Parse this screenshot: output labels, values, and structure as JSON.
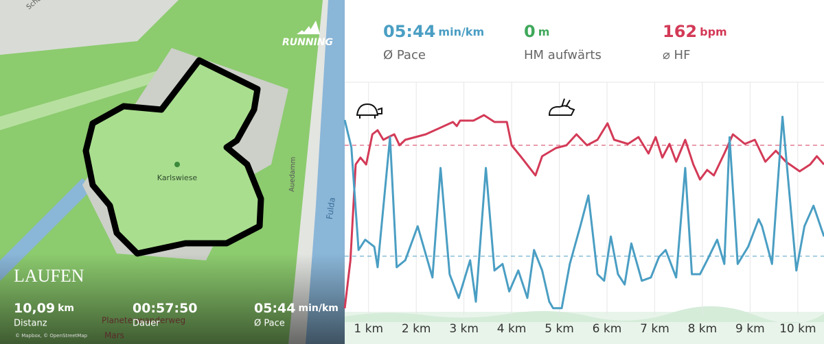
{
  "map": {
    "brand": "RUNNING",
    "activity": "LAUFEN",
    "street_labels": [
      "Schön",
      "Auedamm",
      "Fulda"
    ],
    "park_label": "Karlswiese",
    "poi_labels": [
      "Planetenwanderweg",
      "Mars"
    ],
    "attribution": "© Mapbox, © OpenStreetMap",
    "stats": [
      {
        "value": "10,09",
        "unit": "km",
        "label": "Distanz"
      },
      {
        "value": "00:57:50",
        "unit": "",
        "label": "Dauer"
      },
      {
        "value": "05:44",
        "unit": "min/km",
        "label": "Ø Pace"
      }
    ]
  },
  "summary": [
    {
      "value": "05:44",
      "unit": "min/km",
      "label": "Ø Pace",
      "color": "#4a9ec3"
    },
    {
      "value": "0",
      "unit": "m",
      "label": "HM aufwärts",
      "color": "#3fa85b"
    },
    {
      "value": "162",
      "unit": "bpm",
      "label": "⌀ HF",
      "color": "#d33a57"
    }
  ],
  "chart_data": {
    "type": "line",
    "xlim": [
      0.5,
      10.55
    ],
    "xticks": [
      {
        "value": 1,
        "label": "1 km"
      },
      {
        "value": 2,
        "label": "2 km"
      },
      {
        "value": 3,
        "label": "3 km"
      },
      {
        "value": 4,
        "label": "4 km"
      },
      {
        "value": 5,
        "label": "5 km"
      },
      {
        "value": 6,
        "label": "6 km"
      },
      {
        "value": 7,
        "label": "7 km"
      },
      {
        "value": 8,
        "label": "8 km"
      },
      {
        "value": 9,
        "label": "9 km"
      },
      {
        "value": 10,
        "label": "10 km"
      }
    ],
    "ylim": [
      100,
      185
    ],
    "y2lim": [
      2,
      7
    ],
    "y2_inverted": true,
    "grid": true,
    "series": [
      {
        "color": "#d33a57",
        "x": [
          0.5,
          0.62,
          0.73,
          0.83,
          0.95,
          1.08,
          1.19,
          1.31,
          1.42,
          1.54,
          1.65,
          1.77,
          2.2,
          2.77,
          2.85,
          2.92,
          3.2,
          3.42,
          3.64,
          3.9,
          4.0,
          4.21,
          4.5,
          4.64,
          4.93,
          5.15,
          5.36,
          5.58,
          5.8,
          6.01,
          6.15,
          6.44,
          6.66,
          6.87,
          7.02,
          7.16,
          7.31,
          7.45,
          7.64,
          7.81,
          7.95,
          8.1,
          8.24,
          8.46,
          8.64,
          8.89,
          9.1,
          9.32,
          9.54,
          9.75,
          10.04,
          10.26,
          10.4,
          10.55
        ],
        "values": [
          102.5,
          120,
          155,
          157.5,
          155,
          166,
          167.5,
          164,
          165,
          166,
          162,
          164,
          166,
          170.5,
          169,
          171,
          171,
          173,
          170.5,
          170.5,
          162,
          157.5,
          151,
          158,
          161,
          162,
          166,
          162,
          164,
          170,
          164,
          162.5,
          165,
          159,
          165,
          157.5,
          162.5,
          156,
          164,
          155,
          149.5,
          153,
          151,
          159,
          166,
          162.5,
          164,
          156,
          160,
          156,
          152.5,
          155,
          158,
          155
        ]
      },
      {
        "color": "#4a9ec3",
        "axis": "y2",
        "x": [
          0.5,
          0.64,
          0.79,
          0.93,
          1.12,
          1.19,
          1.45,
          1.59,
          1.77,
          2.03,
          2.34,
          2.51,
          2.7,
          2.89,
          3.13,
          3.25,
          3.46,
          3.64,
          3.81,
          3.95,
          4.14,
          4.33,
          4.47,
          4.64,
          4.79,
          4.87,
          5.05,
          5.22,
          5.44,
          5.61,
          5.8,
          5.94,
          6.08,
          6.23,
          6.37,
          6.51,
          6.73,
          6.92,
          7.09,
          7.23,
          7.45,
          7.64,
          7.78,
          7.95,
          8.1,
          8.31,
          8.46,
          8.57,
          8.74,
          8.96,
          9.18,
          9.25,
          9.46,
          9.68,
          9.97,
          10.14,
          10.33,
          10.55
        ],
        "values": [
          2.81,
          3.4,
          5.6,
          5.38,
          5.53,
          5.97,
          3.18,
          5.97,
          5.82,
          5.09,
          6.19,
          3.84,
          6.12,
          6.63,
          5.82,
          6.71,
          3.84,
          6.04,
          5.9,
          6.49,
          6.04,
          6.63,
          5.6,
          6.04,
          6.71,
          6.85,
          6.85,
          5.9,
          5.09,
          4.43,
          6.12,
          6.26,
          5.31,
          6.12,
          6.34,
          5.46,
          6.26,
          6.19,
          5.75,
          5.6,
          6.19,
          3.84,
          6.12,
          6.12,
          5.82,
          5.38,
          5.9,
          3.18,
          5.9,
          5.53,
          4.94,
          5.09,
          5.9,
          2.74,
          6.04,
          5.09,
          4.65,
          5.31
        ]
      }
    ]
  }
}
